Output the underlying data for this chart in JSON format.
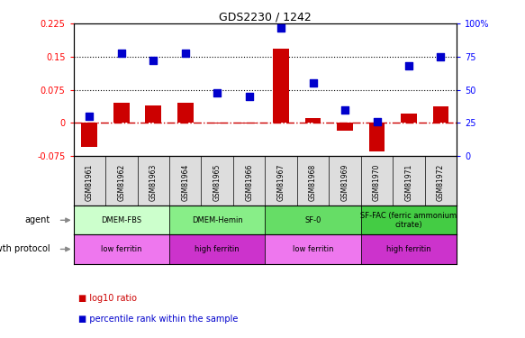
{
  "title": "GDS2230 / 1242",
  "samples": [
    "GSM81961",
    "GSM81962",
    "GSM81963",
    "GSM81964",
    "GSM81965",
    "GSM81966",
    "GSM81967",
    "GSM81968",
    "GSM81969",
    "GSM81970",
    "GSM81971",
    "GSM81972"
  ],
  "log10_ratio": [
    -0.055,
    0.045,
    0.04,
    0.045,
    -0.002,
    -0.002,
    0.168,
    0.012,
    -0.018,
    -0.065,
    0.022,
    0.038
  ],
  "percentile_rank": [
    30,
    78,
    72,
    78,
    48,
    45,
    97,
    55,
    35,
    26,
    68,
    75
  ],
  "ylim_left": [
    -0.075,
    0.225
  ],
  "ylim_right": [
    0,
    100
  ],
  "yticks_left": [
    -0.075,
    0,
    0.075,
    0.15,
    0.225
  ],
  "yticks_left_labels": [
    "-0.075",
    "0",
    "0.075",
    "0.15",
    "0.225"
  ],
  "yticks_right": [
    0,
    25,
    50,
    75,
    100
  ],
  "yticks_right_labels": [
    "0",
    "25",
    "50",
    "75",
    "100%"
  ],
  "hlines": [
    0.075,
    0.15
  ],
  "bar_color": "#cc0000",
  "dot_color": "#0000cc",
  "zero_line_color": "#cc0000",
  "hline_color": "#000000",
  "agent_groups": [
    {
      "label": "DMEM-FBS",
      "start": 0,
      "end": 3,
      "color": "#ccffcc"
    },
    {
      "label": "DMEM-Hemin",
      "start": 3,
      "end": 6,
      "color": "#88ee88"
    },
    {
      "label": "SF-0",
      "start": 6,
      "end": 9,
      "color": "#66dd66"
    },
    {
      "label": "SF-FAC (ferric ammonium\ncitrate)",
      "start": 9,
      "end": 12,
      "color": "#44cc44"
    }
  ],
  "growth_groups": [
    {
      "label": "low ferritin",
      "start": 0,
      "end": 3,
      "color": "#ee77ee"
    },
    {
      "label": "high ferritin",
      "start": 3,
      "end": 6,
      "color": "#cc33cc"
    },
    {
      "label": "low ferritin",
      "start": 6,
      "end": 9,
      "color": "#ee77ee"
    },
    {
      "label": "high ferritin",
      "start": 9,
      "end": 12,
      "color": "#cc33cc"
    }
  ],
  "agent_label": "agent",
  "growth_label": "growth protocol",
  "bar_width": 0.5,
  "dot_size": 40,
  "legend_red": "log10 ratio",
  "legend_blue": "percentile rank within the sample"
}
